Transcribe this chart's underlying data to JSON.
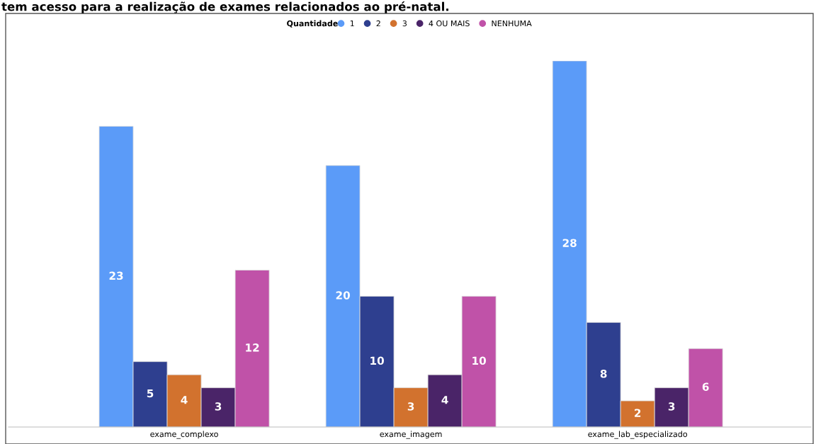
{
  "chart_data": {
    "type": "bar",
    "title": "tem acesso para a realização de exames relacionados ao pré-natal.",
    "legend_title": "Quantidade",
    "legend": "top",
    "data_labels": true,
    "categories": [
      "exame_complexo",
      "exame_imagem",
      "exame_lab_especializado"
    ],
    "series": [
      {
        "name": "1",
        "color": "#5b9bf8",
        "values": [
          23,
          20,
          28
        ]
      },
      {
        "name": "2",
        "color": "#2e3f8f",
        "values": [
          5,
          10,
          8
        ]
      },
      {
        "name": "3",
        "color": "#d2722e",
        "values": [
          4,
          3,
          2
        ]
      },
      {
        "name": "4 OU MAIS",
        "color": "#4a2468",
        "values": [
          3,
          4,
          3
        ]
      },
      {
        "name": "NENHUMA",
        "color": "#c052a8",
        "values": [
          12,
          10,
          6
        ]
      }
    ]
  }
}
